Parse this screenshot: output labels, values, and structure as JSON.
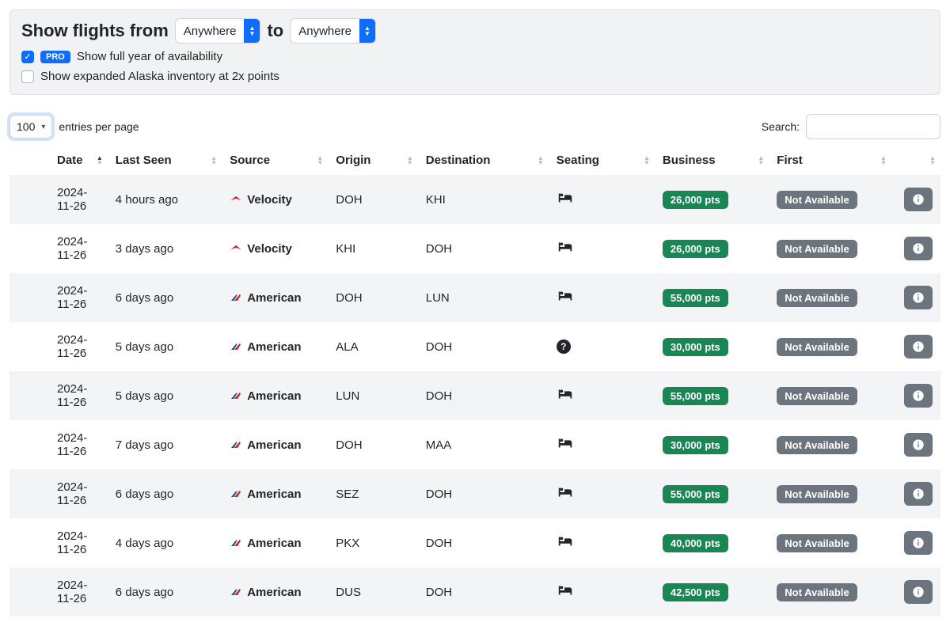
{
  "filter": {
    "title_prefix": "Show flights from",
    "title_mid": "to",
    "from_value": "Anywhere",
    "to_value": "Anywhere",
    "pro_badge": "PRO",
    "full_year_label": "Show full year of availability",
    "full_year_checked": true,
    "alaska_label": "Show expanded Alaska inventory at 2x points",
    "alaska_checked": false
  },
  "controls": {
    "entries_value": "100",
    "entries_suffix": "entries per page",
    "search_label": "Search:"
  },
  "columns": {
    "date": "Date",
    "last_seen": "Last Seen",
    "source": "Source",
    "origin": "Origin",
    "destination": "Destination",
    "seating": "Seating",
    "business": "Business",
    "first": "First"
  },
  "not_available": "Not Available",
  "colors": {
    "primary": "#0d6efd",
    "badge_green": "#198754",
    "badge_gray": "#6c757d",
    "row_stripe": "#f3f4f5",
    "filter_bg": "#f1f2f3"
  },
  "rows": [
    {
      "date": "2024-11-26",
      "last_seen": "4 hours ago",
      "source": "Velocity",
      "source_type": "velocity",
      "origin": "DOH",
      "destination": "KHI",
      "seating": "bed",
      "business": "26,000 pts",
      "first": "na"
    },
    {
      "date": "2024-11-26",
      "last_seen": "3 days ago",
      "source": "Velocity",
      "source_type": "velocity",
      "origin": "KHI",
      "destination": "DOH",
      "seating": "bed",
      "business": "26,000 pts",
      "first": "na"
    },
    {
      "date": "2024-11-26",
      "last_seen": "6 days ago",
      "source": "American",
      "source_type": "american",
      "origin": "DOH",
      "destination": "LUN",
      "seating": "bed",
      "business": "55,000 pts",
      "first": "na"
    },
    {
      "date": "2024-11-26",
      "last_seen": "5 days ago",
      "source": "American",
      "source_type": "american",
      "origin": "ALA",
      "destination": "DOH",
      "seating": "question",
      "business": "30,000 pts",
      "first": "na"
    },
    {
      "date": "2024-11-26",
      "last_seen": "5 days ago",
      "source": "American",
      "source_type": "american",
      "origin": "LUN",
      "destination": "DOH",
      "seating": "bed",
      "business": "55,000 pts",
      "first": "na"
    },
    {
      "date": "2024-11-26",
      "last_seen": "7 days ago",
      "source": "American",
      "source_type": "american",
      "origin": "DOH",
      "destination": "MAA",
      "seating": "bed",
      "business": "30,000 pts",
      "first": "na"
    },
    {
      "date": "2024-11-26",
      "last_seen": "6 days ago",
      "source": "American",
      "source_type": "american",
      "origin": "SEZ",
      "destination": "DOH",
      "seating": "bed",
      "business": "55,000 pts",
      "first": "na"
    },
    {
      "date": "2024-11-26",
      "last_seen": "4 days ago",
      "source": "American",
      "source_type": "american",
      "origin": "PKX",
      "destination": "DOH",
      "seating": "bed",
      "business": "40,000 pts",
      "first": "na"
    },
    {
      "date": "2024-11-26",
      "last_seen": "6 days ago",
      "source": "American",
      "source_type": "american",
      "origin": "DUS",
      "destination": "DOH",
      "seating": "bed",
      "business": "42,500 pts",
      "first": "na"
    }
  ]
}
